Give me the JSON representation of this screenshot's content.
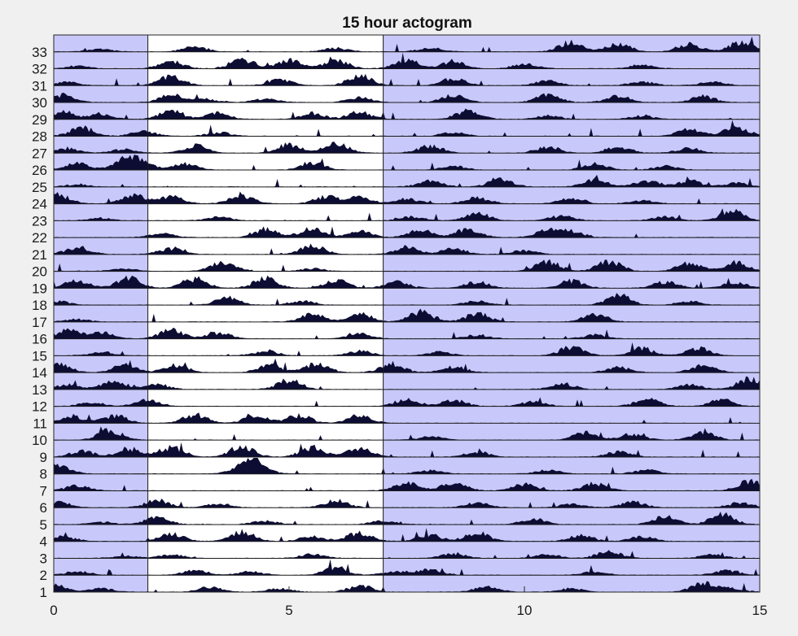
{
  "chart_data": {
    "type": "actogram",
    "title": "15 hour actogram",
    "xlabel": "",
    "ylabel": "",
    "period_hours": 15,
    "xlim": [
      0,
      15
    ],
    "x_ticks": [
      0,
      5,
      10,
      15
    ],
    "day_count": 33,
    "y_ticks": [
      1,
      2,
      3,
      4,
      5,
      6,
      7,
      8,
      9,
      10,
      11,
      12,
      13,
      14,
      15,
      16,
      17,
      18,
      19,
      20,
      21,
      22,
      23,
      24,
      25,
      26,
      27,
      28,
      29,
      30,
      31,
      32,
      33
    ],
    "dark_periods": [
      [
        0,
        2
      ],
      [
        7,
        15
      ]
    ],
    "light_period": [
      2,
      7
    ],
    "grid": false,
    "series": [
      {
        "values": [
          [
            0.0,
            0.6
          ],
          [
            1.0,
            0.3
          ],
          [
            3.3,
            0.4
          ],
          [
            4.8,
            0.3
          ],
          [
            6.5,
            0.5
          ],
          [
            9.2,
            0.4
          ],
          [
            11.0,
            0.3
          ],
          [
            13.8,
            0.7
          ],
          [
            14.4,
            0.3
          ]
        ]
      },
      {
        "values": [
          [
            0.5,
            0.3
          ],
          [
            3.0,
            0.4
          ],
          [
            4.2,
            0.3
          ],
          [
            6.0,
            0.6
          ],
          [
            7.2,
            0.3
          ],
          [
            8.0,
            0.5
          ],
          [
            11.5,
            0.3
          ],
          [
            14.3,
            0.4
          ]
        ]
      },
      {
        "values": [
          [
            1.5,
            0.2
          ],
          [
            2.5,
            0.3
          ],
          [
            5.5,
            0.3
          ],
          [
            8.5,
            0.4
          ],
          [
            10.5,
            0.3
          ],
          [
            11.8,
            0.6
          ],
          [
            14.0,
            0.3
          ]
        ]
      },
      {
        "values": [
          [
            0.2,
            0.4
          ],
          [
            2.5,
            0.6
          ],
          [
            4.0,
            0.8
          ],
          [
            5.5,
            0.4
          ],
          [
            6.5,
            0.7
          ],
          [
            8.0,
            0.5
          ],
          [
            9.0,
            0.7
          ],
          [
            11.2,
            0.5
          ],
          [
            12.5,
            0.4
          ]
        ]
      },
      {
        "values": [
          [
            1.0,
            0.2
          ],
          [
            2.2,
            0.6
          ],
          [
            4.5,
            0.3
          ],
          [
            7.0,
            0.3
          ],
          [
            10.2,
            0.5
          ],
          [
            13.0,
            0.7
          ],
          [
            14.2,
            0.8
          ]
        ]
      },
      {
        "values": [
          [
            0.1,
            0.4
          ],
          [
            2.2,
            0.6
          ],
          [
            3.5,
            0.3
          ],
          [
            6.0,
            0.6
          ],
          [
            9.0,
            0.4
          ],
          [
            11.0,
            0.3
          ],
          [
            12.3,
            0.5
          ],
          [
            14.6,
            0.4
          ]
        ]
      },
      {
        "values": [
          [
            0.5,
            0.4
          ],
          [
            7.5,
            0.6
          ],
          [
            8.5,
            0.7
          ],
          [
            10.0,
            0.5
          ],
          [
            11.5,
            0.6
          ],
          [
            14.8,
            0.8
          ]
        ]
      },
      {
        "values": [
          [
            0.1,
            0.7
          ],
          [
            4.0,
            0.5
          ],
          [
            4.3,
            0.9
          ],
          [
            8.0,
            0.3
          ],
          [
            10.5,
            0.3
          ],
          [
            12.6,
            0.3
          ]
        ]
      },
      {
        "values": [
          [
            0.6,
            0.5
          ],
          [
            1.6,
            0.7
          ],
          [
            2.5,
            0.8
          ],
          [
            4.0,
            0.9
          ],
          [
            5.5,
            0.8
          ],
          [
            6.5,
            0.7
          ],
          [
            9.0,
            0.4
          ],
          [
            12.0,
            0.4
          ]
        ]
      },
      {
        "values": [
          [
            1.2,
            0.8
          ],
          [
            8.0,
            0.3
          ],
          [
            11.3,
            0.6
          ],
          [
            12.3,
            0.5
          ],
          [
            13.8,
            0.6
          ]
        ]
      },
      {
        "values": [
          [
            0.4,
            0.6
          ],
          [
            1.3,
            0.6
          ],
          [
            3.0,
            0.7
          ],
          [
            4.3,
            0.6
          ],
          [
            5.2,
            0.7
          ],
          [
            6.5,
            0.6
          ]
        ]
      },
      {
        "values": [
          [
            0.8,
            0.3
          ],
          [
            2.0,
            0.5
          ],
          [
            7.5,
            0.6
          ],
          [
            8.5,
            0.5
          ],
          [
            10.2,
            0.4
          ],
          [
            12.6,
            0.6
          ],
          [
            14.2,
            0.5
          ]
        ]
      },
      {
        "values": [
          [
            0.3,
            0.4
          ],
          [
            1.3,
            0.7
          ],
          [
            2.2,
            0.4
          ],
          [
            5.0,
            0.8
          ],
          [
            10.8,
            0.5
          ],
          [
            13.5,
            0.4
          ],
          [
            14.8,
            0.9
          ]
        ]
      },
      {
        "values": [
          [
            0.1,
            0.7
          ],
          [
            1.5,
            0.6
          ],
          [
            2.6,
            0.6
          ],
          [
            4.6,
            0.6
          ],
          [
            5.6,
            0.7
          ],
          [
            7.2,
            0.7
          ],
          [
            8.5,
            0.5
          ],
          [
            12.0,
            0.4
          ],
          [
            13.8,
            0.6
          ]
        ]
      },
      {
        "values": [
          [
            1.0,
            0.3
          ],
          [
            4.5,
            0.4
          ],
          [
            6.5,
            0.4
          ],
          [
            8.2,
            0.3
          ],
          [
            11.0,
            0.7
          ],
          [
            12.5,
            0.6
          ],
          [
            13.7,
            0.6
          ]
        ]
      },
      {
        "values": [
          [
            0.3,
            0.7
          ],
          [
            1.0,
            0.5
          ],
          [
            2.5,
            0.7
          ],
          [
            3.5,
            0.5
          ],
          [
            6.5,
            0.4
          ],
          [
            9.0,
            0.3
          ],
          [
            11.5,
            0.3
          ]
        ]
      },
      {
        "values": [
          [
            0.5,
            0.2
          ],
          [
            5.5,
            0.6
          ],
          [
            6.5,
            0.7
          ],
          [
            7.8,
            0.8
          ],
          [
            9.0,
            0.7
          ],
          [
            11.5,
            0.6
          ]
        ]
      },
      {
        "values": [
          [
            0.1,
            0.3
          ],
          [
            3.7,
            0.6
          ],
          [
            5.3,
            0.3
          ],
          [
            9.0,
            0.3
          ],
          [
            12.0,
            0.8
          ],
          [
            13.5,
            0.3
          ]
        ]
      },
      {
        "values": [
          [
            0.5,
            0.6
          ],
          [
            1.6,
            0.8
          ],
          [
            3.0,
            0.8
          ],
          [
            4.5,
            0.8
          ],
          [
            6.0,
            0.6
          ],
          [
            7.3,
            0.5
          ],
          [
            9.0,
            0.5
          ],
          [
            11.0,
            0.6
          ],
          [
            13.0,
            0.5
          ],
          [
            14.5,
            0.5
          ]
        ]
      },
      {
        "values": [
          [
            1.5,
            0.2
          ],
          [
            3.6,
            0.8
          ],
          [
            5.5,
            0.2
          ],
          [
            10.5,
            0.8
          ],
          [
            11.8,
            0.8
          ],
          [
            13.5,
            0.7
          ],
          [
            14.5,
            0.7
          ]
        ]
      },
      {
        "values": [
          [
            0.5,
            0.6
          ],
          [
            2.5,
            0.5
          ],
          [
            5.5,
            0.7
          ],
          [
            7.5,
            0.6
          ],
          [
            8.5,
            0.5
          ],
          [
            10.0,
            0.3
          ]
        ]
      },
      {
        "values": [
          [
            2.3,
            0.3
          ],
          [
            4.5,
            0.7
          ],
          [
            5.5,
            0.8
          ],
          [
            6.5,
            0.5
          ],
          [
            7.8,
            0.6
          ],
          [
            8.8,
            0.7
          ],
          [
            10.5,
            0.6
          ],
          [
            11.0,
            0.5
          ]
        ]
      },
      {
        "values": [
          [
            1.0,
            0.2
          ],
          [
            3.5,
            0.3
          ],
          [
            7.6,
            0.3
          ],
          [
            9.0,
            0.6
          ],
          [
            10.8,
            0.4
          ],
          [
            13.0,
            0.3
          ],
          [
            14.4,
            0.8
          ]
        ]
      },
      {
        "values": [
          [
            0.1,
            0.7
          ],
          [
            1.7,
            0.7
          ],
          [
            2.5,
            0.6
          ],
          [
            4.0,
            0.7
          ],
          [
            5.8,
            0.6
          ],
          [
            6.5,
            0.5
          ],
          [
            7.5,
            0.4
          ],
          [
            9.0,
            0.5
          ],
          [
            11.0,
            0.5
          ],
          [
            12.5,
            0.3
          ]
        ]
      },
      {
        "values": [
          [
            0.5,
            0.2
          ],
          [
            8.0,
            0.5
          ],
          [
            9.5,
            0.6
          ],
          [
            11.5,
            0.6
          ],
          [
            12.6,
            0.5
          ],
          [
            13.5,
            0.5
          ],
          [
            14.5,
            0.3
          ]
        ]
      },
      {
        "values": [
          [
            0.5,
            0.6
          ],
          [
            1.5,
            0.6
          ],
          [
            1.8,
            0.8
          ],
          [
            2.8,
            0.5
          ],
          [
            5.5,
            0.6
          ],
          [
            8.5,
            0.3
          ],
          [
            11.5,
            0.5
          ],
          [
            13.0,
            0.3
          ]
        ]
      },
      {
        "values": [
          [
            0.3,
            0.4
          ],
          [
            1.5,
            0.3
          ],
          [
            3.0,
            0.6
          ],
          [
            5.0,
            0.7
          ],
          [
            6.0,
            0.8
          ],
          [
            8.0,
            0.6
          ],
          [
            10.5,
            0.5
          ],
          [
            12.0,
            0.5
          ],
          [
            13.5,
            0.4
          ]
        ]
      },
      {
        "values": [
          [
            0.6,
            0.7
          ],
          [
            1.9,
            0.4
          ],
          [
            3.5,
            0.3
          ],
          [
            8.5,
            0.3
          ],
          [
            13.5,
            0.6
          ],
          [
            14.5,
            0.8
          ]
        ]
      },
      {
        "values": [
          [
            0.2,
            0.6
          ],
          [
            1.0,
            0.4
          ],
          [
            2.5,
            0.7
          ],
          [
            3.5,
            0.5
          ],
          [
            5.5,
            0.5
          ],
          [
            6.5,
            0.6
          ],
          [
            8.8,
            0.7
          ],
          [
            10.5,
            0.3
          ],
          [
            12.5,
            0.3
          ]
        ]
      },
      {
        "values": [
          [
            0.2,
            0.6
          ],
          [
            2.5,
            0.6
          ],
          [
            3.2,
            0.3
          ],
          [
            4.5,
            0.3
          ],
          [
            6.5,
            0.4
          ],
          [
            8.5,
            0.6
          ],
          [
            10.5,
            0.6
          ],
          [
            12.0,
            0.5
          ],
          [
            13.8,
            0.5
          ]
        ]
      },
      {
        "values": [
          [
            0.3,
            0.3
          ],
          [
            2.5,
            0.8
          ],
          [
            4.8,
            0.5
          ],
          [
            6.5,
            0.8
          ],
          [
            8.5,
            0.6
          ],
          [
            10.5,
            0.4
          ],
          [
            12.5,
            0.3
          ],
          [
            14.0,
            0.3
          ]
        ]
      },
      {
        "values": [
          [
            0.5,
            0.2
          ],
          [
            2.5,
            0.6
          ],
          [
            4.0,
            0.8
          ],
          [
            5.0,
            0.7
          ],
          [
            6.0,
            0.7
          ],
          [
            7.5,
            0.7
          ],
          [
            8.5,
            0.6
          ],
          [
            10.0,
            0.4
          ],
          [
            12.5,
            0.3
          ]
        ]
      },
      {
        "values": [
          [
            1.0,
            0.2
          ],
          [
            3.0,
            0.4
          ],
          [
            6.0,
            0.3
          ],
          [
            8.0,
            0.3
          ],
          [
            11.0,
            0.8
          ],
          [
            12.0,
            0.7
          ],
          [
            13.5,
            0.6
          ],
          [
            14.6,
            0.8
          ]
        ]
      }
    ],
    "colors": {
      "background": "#f0f0f0",
      "plot_area": "#ffffff",
      "dark_shade": "#c8c8fa",
      "activity_dark": "#0d0d33",
      "activity_light": "#000000",
      "axis": "#262626"
    }
  }
}
